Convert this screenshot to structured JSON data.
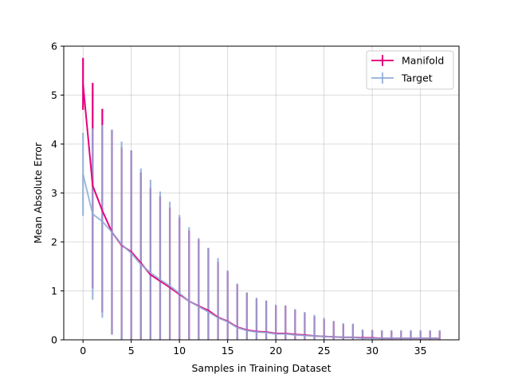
{
  "chart_data": {
    "type": "line",
    "title": "",
    "xlabel": "Samples in Training Dataset",
    "ylabel": "Mean Absolute Error",
    "xlim": [
      -2,
      39
    ],
    "ylim": [
      0,
      6
    ],
    "xticks": [
      0,
      5,
      10,
      15,
      20,
      25,
      30,
      35
    ],
    "yticks": [
      0,
      1,
      2,
      3,
      4,
      5,
      6
    ],
    "grid": true,
    "legend_position": "top-right",
    "x": [
      0,
      1,
      2,
      3,
      4,
      5,
      6,
      7,
      8,
      9,
      10,
      11,
      12,
      13,
      14,
      15,
      16,
      17,
      18,
      19,
      20,
      21,
      22,
      23,
      24,
      25,
      26,
      27,
      28,
      29,
      30,
      31,
      32,
      33,
      34,
      35,
      36,
      37
    ],
    "series": [
      {
        "name": "Manifold",
        "color": "#e6007e",
        "values": [
          5.23,
          3.15,
          2.64,
          2.2,
          1.93,
          1.8,
          1.57,
          1.33,
          1.2,
          1.07,
          0.93,
          0.79,
          0.69,
          0.6,
          0.46,
          0.38,
          0.26,
          0.2,
          0.17,
          0.16,
          0.13,
          0.13,
          0.11,
          0.1,
          0.08,
          0.07,
          0.06,
          0.05,
          0.05,
          0.04,
          0.04,
          0.03,
          0.03,
          0.03,
          0.03,
          0.03,
          0.03,
          0.03
        ],
        "errors": [
          0.53,
          2.1,
          2.08,
          2.08,
          2.0,
          2.07,
          1.85,
          1.77,
          1.73,
          1.63,
          1.57,
          1.44,
          1.36,
          1.27,
          1.13,
          1.02,
          0.87,
          0.76,
          0.67,
          0.64,
          0.57,
          0.57,
          0.5,
          0.45,
          0.4,
          0.35,
          0.31,
          0.27,
          0.27,
          0.16,
          0.16,
          0.15,
          0.15,
          0.15,
          0.15,
          0.15,
          0.15,
          0.15
        ]
      },
      {
        "name": "Target",
        "color": "#8eabd6",
        "values": [
          3.38,
          2.57,
          2.42,
          2.2,
          1.95,
          1.77,
          1.54,
          1.37,
          1.23,
          1.1,
          0.95,
          0.79,
          0.68,
          0.57,
          0.45,
          0.37,
          0.25,
          0.19,
          0.16,
          0.15,
          0.12,
          0.12,
          0.1,
          0.09,
          0.08,
          0.07,
          0.06,
          0.05,
          0.05,
          0.03,
          0.03,
          0.03,
          0.03,
          0.03,
          0.03,
          0.03,
          0.03,
          0.03
        ],
        "errors": [
          0.85,
          1.75,
          1.97,
          2.1,
          2.1,
          2.1,
          1.96,
          1.9,
          1.8,
          1.72,
          1.6,
          1.51,
          1.4,
          1.31,
          1.22,
          1.05,
          0.9,
          0.78,
          0.7,
          0.65,
          0.6,
          0.58,
          0.53,
          0.48,
          0.43,
          0.38,
          0.33,
          0.29,
          0.28,
          0.18,
          0.17,
          0.17,
          0.17,
          0.17,
          0.17,
          0.17,
          0.17,
          0.17
        ]
      }
    ]
  }
}
